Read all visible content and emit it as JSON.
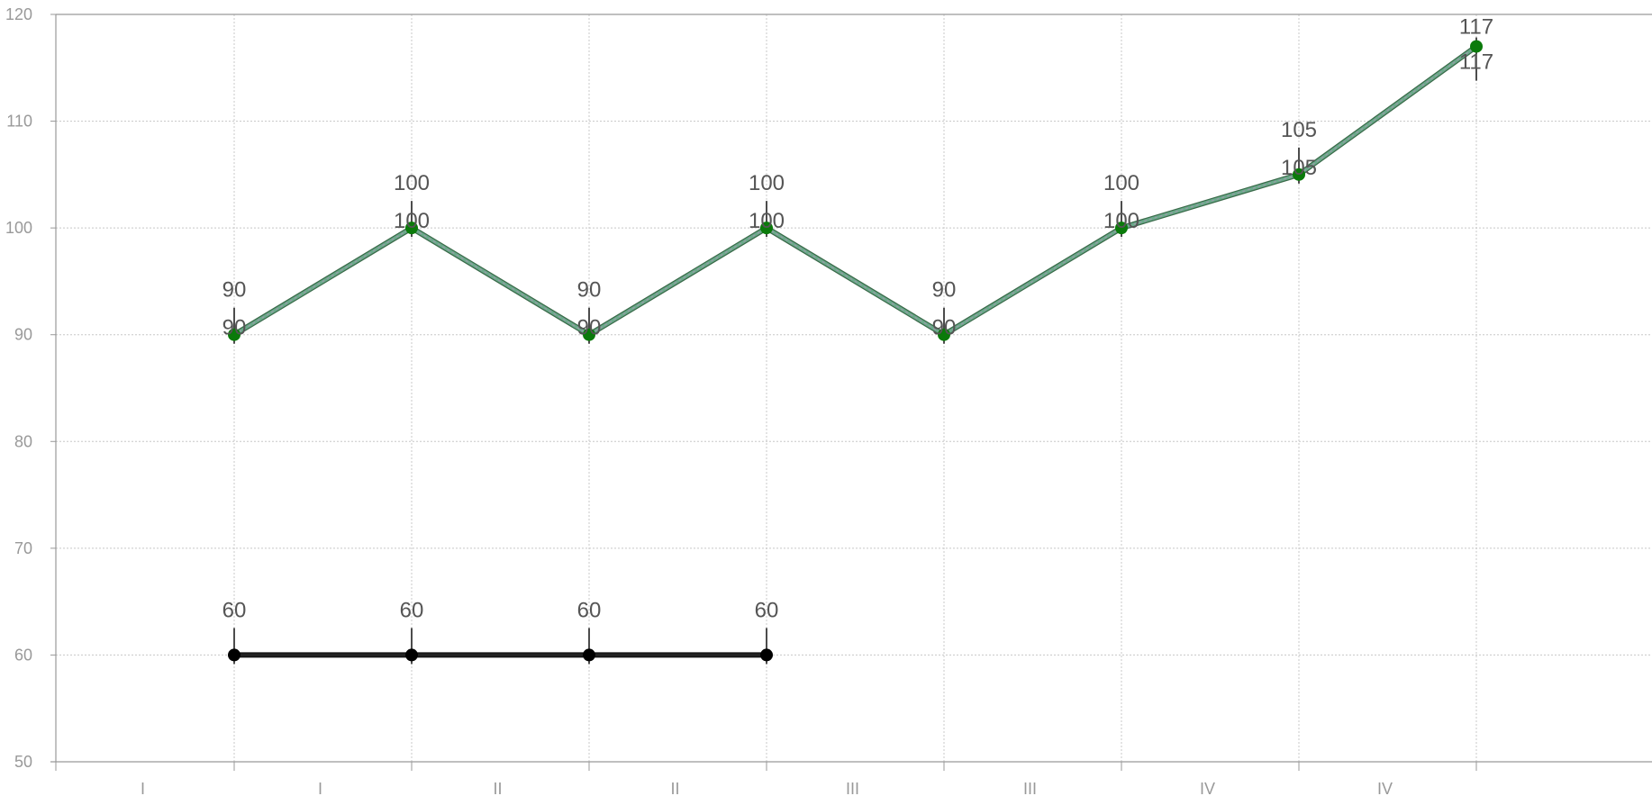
{
  "chart_data": {
    "type": "line",
    "title": "",
    "xlabel": "",
    "ylabel": "",
    "categories": [
      "I",
      "I",
      "II",
      "II",
      "III",
      "III",
      "IV",
      "IV"
    ],
    "ylim": [
      50,
      120
    ],
    "yticks": [
      50,
      60,
      70,
      80,
      90,
      100,
      110,
      120
    ],
    "grid": true,
    "legend": "none",
    "series": [
      {
        "values": [
          90,
          100,
          90,
          100,
          90,
          100,
          105,
          117
        ],
        "color": "#6aaa8a",
        "marker_color": "#0a7a0a"
      },
      {
        "values": [
          60,
          60,
          60,
          60,
          null,
          null,
          null,
          null
        ],
        "color": "#222222",
        "marker_color": "#000000"
      }
    ]
  }
}
